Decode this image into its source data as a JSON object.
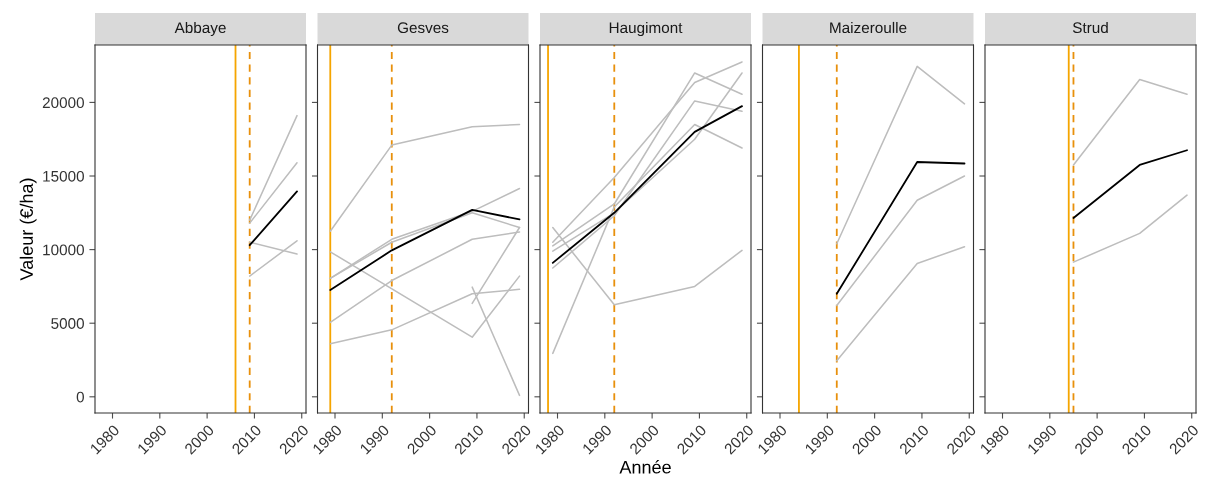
{
  "chart_data": [
    {
      "type": "line",
      "title": "Abbaye",
      "ylabel": "Valeur (€/ha)",
      "xlim": [
        1976.3,
        2020.9
      ],
      "xticks": [
        1980,
        1990,
        2000,
        2010,
        2020
      ],
      "ylim": [
        -1100,
        23900
      ],
      "yticks": [
        0,
        5000,
        10000,
        15000,
        20000
      ],
      "grid": false,
      "legend": false,
      "series": [
        {
          "color": "#bdbdbd",
          "x": [
            2009,
            2019
          ],
          "values": [
            12000,
            19100
          ]
        },
        {
          "color": "#bdbdbd",
          "x": [
            2009,
            2019
          ],
          "values": [
            11800,
            15900
          ]
        },
        {
          "color": "#bdbdbd",
          "x": [
            2009,
            2019
          ],
          "values": [
            10500,
            9700
          ]
        },
        {
          "color": "#bdbdbd",
          "x": [
            2009,
            2019
          ],
          "values": [
            8200,
            10600
          ]
        },
        {
          "color": "#000000",
          "x": [
            2009,
            2019
          ],
          "values": [
            10300,
            13950
          ]
        }
      ],
      "ref_lines": [
        {
          "axis": "x",
          "value": 2006,
          "color": "#f5a500",
          "line_style": "solid"
        },
        {
          "axis": "x",
          "value": 2009,
          "color": "#e8900c",
          "line_style": "dashed"
        }
      ]
    },
    {
      "type": "line",
      "title": "Gesves",
      "xlim": [
        1976.3,
        2020.9
      ],
      "xticks": [
        1980,
        1990,
        2000,
        2010,
        2020
      ],
      "ylim": [
        -1100,
        23900
      ],
      "yticks": [
        0,
        5000,
        10000,
        15000,
        20000
      ],
      "grid": false,
      "legend": false,
      "tick_labels": "x",
      "series": [
        {
          "color": "#bdbdbd",
          "x": [
            1979,
            1992,
            2009,
            2019
          ],
          "values": [
            11250,
            17100,
            18350,
            18500
          ]
        },
        {
          "color": "#bdbdbd",
          "x": [
            1979,
            1992,
            2009,
            2019
          ],
          "values": [
            8050,
            10700,
            12600,
            14150
          ]
        },
        {
          "color": "#bdbdbd",
          "x": [
            1979,
            1992,
            2009,
            2019
          ],
          "values": [
            8050,
            10500,
            12500,
            11500
          ]
        },
        {
          "color": "#bdbdbd",
          "x": [
            1979,
            1992,
            2009,
            2019
          ],
          "values": [
            5050,
            7900,
            10700,
            11200
          ]
        },
        {
          "color": "#bdbdbd",
          "x": [
            1979,
            2009,
            2019
          ],
          "values": [
            9850,
            4050,
            8200
          ]
        },
        {
          "color": "#bdbdbd",
          "x": [
            1979,
            1992,
            2009,
            2019
          ],
          "values": [
            3600,
            4550,
            7000,
            7300
          ]
        },
        {
          "color": "#bdbdbd",
          "x": [
            2009,
            2019
          ],
          "values": [
            7450,
            100
          ]
        },
        {
          "color": "#bdbdbd",
          "x": [
            2009,
            2019
          ],
          "values": [
            6350,
            11500
          ]
        },
        {
          "color": "#000000",
          "x": [
            1979,
            1992,
            2009,
            2019
          ],
          "values": [
            7250,
            9950,
            12700,
            12050
          ]
        }
      ],
      "ref_lines": [
        {
          "axis": "x",
          "value": 1979,
          "color": "#f5a500",
          "line_style": "solid"
        },
        {
          "axis": "x",
          "value": 1992,
          "color": "#e8900c",
          "line_style": "dashed"
        }
      ]
    },
    {
      "type": "line",
      "title": "Haugimont",
      "xlabel": "Année",
      "xlim": [
        1976.3,
        2020.9
      ],
      "xticks": [
        1980,
        1990,
        2000,
        2010,
        2020
      ],
      "ylim": [
        -1100,
        23900
      ],
      "yticks": [
        0,
        5000,
        10000,
        15000,
        20000
      ],
      "grid": false,
      "legend": false,
      "tick_labels": "x",
      "series": [
        {
          "color": "#bdbdbd",
          "x": [
            1979,
            1992,
            2009,
            2019
          ],
          "values": [
            10500,
            14900,
            21350,
            22750
          ]
        },
        {
          "color": "#bdbdbd",
          "x": [
            1979,
            1992,
            2009,
            2019
          ],
          "values": [
            10250,
            13100,
            22000,
            20550
          ]
        },
        {
          "color": "#bdbdbd",
          "x": [
            1979,
            1992,
            2009,
            2019
          ],
          "values": [
            8750,
            12300,
            20100,
            19400
          ]
        },
        {
          "color": "#bdbdbd",
          "x": [
            1979,
            1992,
            2009,
            2019
          ],
          "values": [
            2950,
            12900,
            18500,
            16900
          ]
        },
        {
          "color": "#bdbdbd",
          "x": [
            1979,
            1992,
            2009,
            2019
          ],
          "values": [
            9900,
            12500,
            17500,
            22000
          ]
        },
        {
          "color": "#bdbdbd",
          "x": [
            1979,
            1992,
            2009,
            2019
          ],
          "values": [
            11500,
            6250,
            7500,
            9950
          ]
        },
        {
          "color": "#000000",
          "x": [
            1979,
            1992,
            2009,
            2019
          ],
          "values": [
            9100,
            12500,
            18000,
            19750
          ]
        }
      ],
      "ref_lines": [
        {
          "axis": "x",
          "value": 1978,
          "color": "#f5a500",
          "line_style": "solid"
        },
        {
          "axis": "x",
          "value": 1992,
          "color": "#e8900c",
          "line_style": "dashed"
        }
      ]
    },
    {
      "type": "line",
      "title": "Maizeroulle",
      "xlim": [
        1976.3,
        2020.9
      ],
      "xticks": [
        1980,
        1990,
        2000,
        2010,
        2020
      ],
      "ylim": [
        -1100,
        23900
      ],
      "yticks": [
        0,
        5000,
        10000,
        15000,
        20000
      ],
      "grid": false,
      "legend": false,
      "tick_labels": "x",
      "series": [
        {
          "color": "#bdbdbd",
          "x": [
            1992,
            2009,
            2019
          ],
          "values": [
            10400,
            22450,
            19900
          ]
        },
        {
          "color": "#bdbdbd",
          "x": [
            1992,
            2009,
            2019
          ],
          "values": [
            6200,
            13350,
            15000
          ]
        },
        {
          "color": "#bdbdbd",
          "x": [
            1992,
            2009,
            2019
          ],
          "values": [
            2450,
            9050,
            10200
          ]
        },
        {
          "color": "#000000",
          "x": [
            1992,
            2009,
            2019
          ],
          "values": [
            7000,
            15950,
            15850
          ]
        }
      ],
      "ref_lines": [
        {
          "axis": "x",
          "value": 1984,
          "color": "#f5a500",
          "line_style": "solid"
        },
        {
          "axis": "x",
          "value": 1992,
          "color": "#e8900c",
          "line_style": "dashed"
        }
      ]
    },
    {
      "type": "line",
      "title": "Strud",
      "xlim": [
        1976.3,
        2020.9
      ],
      "xticks": [
        1980,
        1990,
        2000,
        2010,
        2020
      ],
      "ylim": [
        -1100,
        23900
      ],
      "yticks": [
        0,
        5000,
        10000,
        15000,
        20000
      ],
      "grid": false,
      "legend": false,
      "tick_labels": "x",
      "series": [
        {
          "color": "#bdbdbd",
          "x": [
            1995,
            2009,
            2019
          ],
          "values": [
            15750,
            21550,
            20550
          ]
        },
        {
          "color": "#bdbdbd",
          "x": [
            1995,
            2009,
            2019
          ],
          "values": [
            9150,
            11100,
            13700
          ]
        },
        {
          "color": "#000000",
          "x": [
            1995,
            2009,
            2019
          ],
          "values": [
            12150,
            15750,
            16750
          ]
        }
      ],
      "ref_lines": [
        {
          "axis": "x",
          "value": 1994,
          "color": "#f5a500",
          "line_style": "solid"
        },
        {
          "axis": "x",
          "value": 1995,
          "color": "#e8900c",
          "line_style": "dashed"
        }
      ]
    }
  ]
}
